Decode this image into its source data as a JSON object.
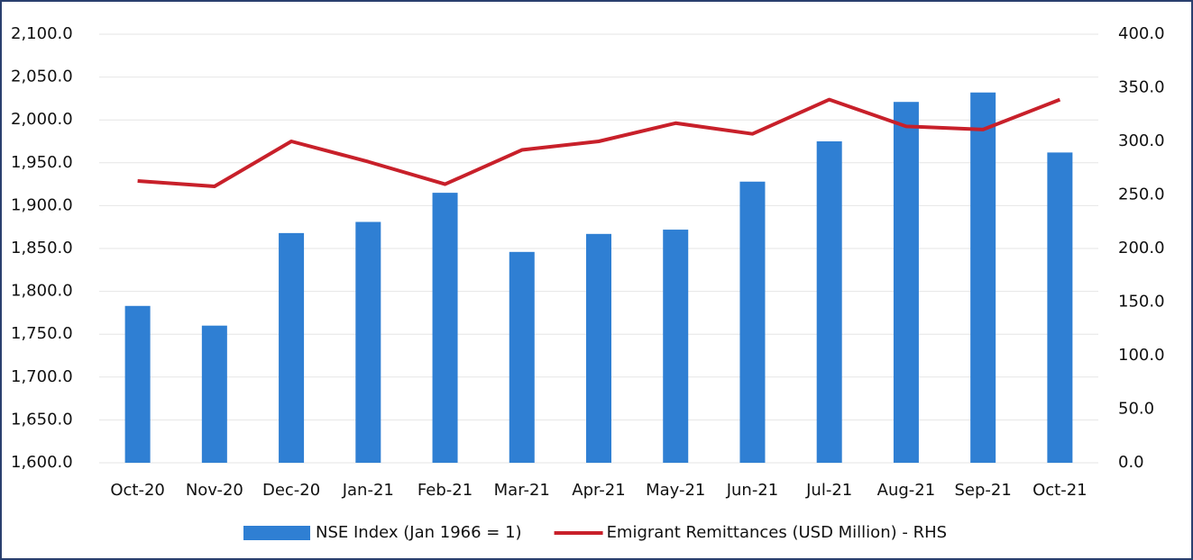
{
  "chart_data": {
    "type": "combo",
    "categories": [
      "Oct-20",
      "Nov-20",
      "Dec-20",
      "Jan-21",
      "Feb-21",
      "Mar-21",
      "Apr-21",
      "May-21",
      "Jun-21",
      "Jul-21",
      "Aug-21",
      "Sep-21",
      "Oct-21"
    ],
    "series": [
      {
        "name": "NSE Index (Jan 1966 = 1)",
        "type": "bar",
        "color": "#2f7fd3",
        "axis": "y",
        "values": [
          1783,
          1760,
          1868,
          1881,
          1915,
          1846,
          1867,
          1872,
          1928,
          1975,
          2021,
          2032,
          1962
        ]
      },
      {
        "name": "Emigrant Remittances (USD Million) - RHS",
        "type": "line",
        "color": "#c8202a",
        "axis": "y2",
        "values": [
          263,
          258,
          300,
          281,
          260,
          292,
          300,
          317,
          307,
          339,
          314,
          311,
          339
        ]
      }
    ],
    "ylim": [
      1600,
      2100
    ],
    "yticks": [
      {
        "value": 1600,
        "label": "1,600.0"
      },
      {
        "value": 1650,
        "label": "1,650.0"
      },
      {
        "value": 1700,
        "label": "1,700.0"
      },
      {
        "value": 1750,
        "label": "1,750.0"
      },
      {
        "value": 1800,
        "label": "1,800.0"
      },
      {
        "value": 1850,
        "label": "1,850.0"
      },
      {
        "value": 1900,
        "label": "1,900.0"
      },
      {
        "value": 1950,
        "label": "1,950.0"
      },
      {
        "value": 2000,
        "label": "2,000.0"
      },
      {
        "value": 2050,
        "label": "2,050.0"
      },
      {
        "value": 2100,
        "label": "2,100.0"
      }
    ],
    "y2lim": [
      0,
      400
    ],
    "y2ticks": [
      {
        "value": 0,
        "label": "0.0"
      },
      {
        "value": 50,
        "label": "50.0"
      },
      {
        "value": 100,
        "label": "100.0"
      },
      {
        "value": 150,
        "label": "150.0"
      },
      {
        "value": 200,
        "label": "200.0"
      },
      {
        "value": 250,
        "label": "250.0"
      },
      {
        "value": 300,
        "label": "300.0"
      },
      {
        "value": 350,
        "label": "350.0"
      },
      {
        "value": 400,
        "label": "400.0"
      }
    ],
    "grid": true,
    "legend": "bottom"
  }
}
